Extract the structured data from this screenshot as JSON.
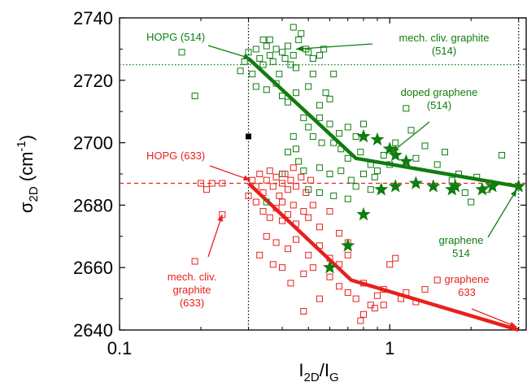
{
  "chart_data": {
    "type": "scatter",
    "xscale": "log",
    "xlim": [
      0.1,
      3.2
    ],
    "ylim": [
      2640,
      2740
    ],
    "xticks": [
      {
        "value": 0.1,
        "label": "0.1"
      },
      {
        "value": 1,
        "label": "1"
      }
    ],
    "yticks": [
      2640,
      2660,
      2680,
      2700,
      2720,
      2740
    ],
    "xlabel": {
      "main": "I",
      "sub1": "2D",
      "mid": "/I",
      "sub2": "G"
    },
    "ylabel": {
      "main": "σ",
      "sub": "2D",
      "mid": " (cm",
      "sup": "-1",
      "end": ")"
    },
    "colors": {
      "green": "#0f7d0f",
      "red": "#e8201c",
      "black": "#000000"
    },
    "reference_lines": [
      {
        "orientation": "vertical",
        "value": 0.3,
        "color": "#000000",
        "style": "dotted"
      },
      {
        "orientation": "vertical",
        "value": 3.0,
        "color": "#000000",
        "style": "dotted"
      },
      {
        "orientation": "horizontal",
        "value": 2725,
        "color": "#0f7d0f",
        "style": "dotted"
      },
      {
        "orientation": "horizontal",
        "value": 2687,
        "color": "#e8201c",
        "style": "dashed"
      }
    ],
    "trend_lines": [
      {
        "color": "#0f7d0f",
        "points": [
          [
            0.3,
            2727
          ],
          [
            0.75,
            2695
          ],
          [
            3.0,
            2686
          ]
        ]
      },
      {
        "color": "#e8201c",
        "points": [
          [
            0.3,
            2687
          ],
          [
            0.72,
            2656
          ],
          [
            3.0,
            2640
          ]
        ]
      }
    ],
    "series": [
      {
        "marker": "open-square",
        "color": "#0f7d0f",
        "points": [
          [
            0.17,
            2729
          ],
          [
            0.19,
            2715
          ],
          [
            0.28,
            2723
          ],
          [
            0.29,
            2726
          ],
          [
            0.3,
            2729
          ],
          [
            0.31,
            2722
          ],
          [
            0.32,
            2730
          ],
          [
            0.33,
            2727
          ],
          [
            0.34,
            2725
          ],
          [
            0.35,
            2731
          ],
          [
            0.36,
            2728
          ],
          [
            0.37,
            2726
          ],
          [
            0.38,
            2730
          ],
          [
            0.39,
            2722
          ],
          [
            0.4,
            2729
          ],
          [
            0.41,
            2727
          ],
          [
            0.42,
            2731
          ],
          [
            0.43,
            2725
          ],
          [
            0.44,
            2728
          ],
          [
            0.45,
            2724
          ],
          [
            0.46,
            2733
          ],
          [
            0.47,
            2735
          ],
          [
            0.49,
            2730
          ],
          [
            0.5,
            2729
          ],
          [
            0.52,
            2727
          ],
          [
            0.55,
            2728
          ],
          [
            0.57,
            2730
          ],
          [
            0.32,
            2718
          ],
          [
            0.35,
            2717
          ],
          [
            0.38,
            2719
          ],
          [
            0.4,
            2715
          ],
          [
            0.42,
            2713
          ],
          [
            0.45,
            2716
          ],
          [
            0.5,
            2718
          ],
          [
            0.55,
            2712
          ],
          [
            0.6,
            2714
          ],
          [
            0.44,
            2737
          ],
          [
            0.34,
            2733
          ],
          [
            0.36,
            2733
          ],
          [
            0.52,
            2722
          ],
          [
            0.58,
            2716
          ],
          [
            0.62,
            2722
          ],
          [
            0.48,
            2708
          ],
          [
            0.5,
            2705
          ],
          [
            0.55,
            2708
          ],
          [
            0.6,
            2706
          ],
          [
            0.65,
            2703
          ],
          [
            0.7,
            2705
          ],
          [
            0.75,
            2702
          ],
          [
            0.8,
            2706
          ],
          [
            0.52,
            2702
          ],
          [
            0.56,
            2700
          ],
          [
            0.62,
            2700
          ],
          [
            0.66,
            2698
          ],
          [
            0.7,
            2695
          ],
          [
            0.78,
            2697
          ],
          [
            0.85,
            2693
          ],
          [
            0.9,
            2691
          ],
          [
            0.95,
            2696
          ],
          [
            0.45,
            2698
          ],
          [
            0.48,
            2691
          ],
          [
            0.55,
            2692
          ],
          [
            0.6,
            2690
          ],
          [
            0.66,
            2691
          ],
          [
            0.72,
            2688
          ],
          [
            0.8,
            2690
          ],
          [
            0.88,
            2689
          ],
          [
            1.0,
            2693
          ],
          [
            1.05,
            2700
          ],
          [
            1.15,
            2711
          ],
          [
            1.2,
            2704
          ],
          [
            1.35,
            2699
          ],
          [
            1.5,
            2693
          ],
          [
            1.6,
            2697
          ],
          [
            1.7,
            2688
          ],
          [
            1.8,
            2690
          ],
          [
            1.9,
            2684
          ],
          [
            2.0,
            2681
          ],
          [
            2.1,
            2689
          ],
          [
            2.3,
            2685
          ],
          [
            2.6,
            2696
          ],
          [
            1.25,
            2695
          ],
          [
            0.5,
            2685
          ],
          [
            0.55,
            2684
          ],
          [
            0.62,
            2683
          ],
          [
            0.7,
            2682
          ],
          [
            0.75,
            2686
          ],
          [
            0.85,
            2685
          ],
          [
            0.42,
            2697
          ],
          [
            0.44,
            2702
          ],
          [
            0.46,
            2694
          ],
          [
            0.4,
            2690
          ],
          [
            0.35,
            2681
          ]
        ]
      },
      {
        "marker": "open-square",
        "color": "#e8201c",
        "points": [
          [
            0.2,
            2687
          ],
          [
            0.21,
            2685
          ],
          [
            0.22,
            2687
          ],
          [
            0.24,
            2687
          ],
          [
            0.24,
            2677
          ],
          [
            0.19,
            2662
          ],
          [
            0.3,
            2683
          ],
          [
            0.31,
            2688
          ],
          [
            0.32,
            2686
          ],
          [
            0.33,
            2690
          ],
          [
            0.34,
            2684
          ],
          [
            0.35,
            2688
          ],
          [
            0.36,
            2691
          ],
          [
            0.37,
            2686
          ],
          [
            0.38,
            2689
          ],
          [
            0.39,
            2683
          ],
          [
            0.4,
            2687
          ],
          [
            0.41,
            2690
          ],
          [
            0.42,
            2685
          ],
          [
            0.43,
            2688
          ],
          [
            0.44,
            2692
          ],
          [
            0.45,
            2686
          ],
          [
            0.47,
            2689
          ],
          [
            0.49,
            2684
          ],
          [
            0.51,
            2688
          ],
          [
            0.34,
            2678
          ],
          [
            0.36,
            2676
          ],
          [
            0.38,
            2679
          ],
          [
            0.4,
            2675
          ],
          [
            0.42,
            2677
          ],
          [
            0.45,
            2674
          ],
          [
            0.48,
            2678
          ],
          [
            0.5,
            2676
          ],
          [
            0.55,
            2673
          ],
          [
            0.6,
            2678
          ],
          [
            0.35,
            2670
          ],
          [
            0.38,
            2668
          ],
          [
            0.42,
            2666
          ],
          [
            0.45,
            2669
          ],
          [
            0.5,
            2664
          ],
          [
            0.55,
            2667
          ],
          [
            0.6,
            2663
          ],
          [
            0.65,
            2661
          ],
          [
            0.7,
            2664
          ],
          [
            0.32,
            2681
          ],
          [
            0.4,
            2681
          ],
          [
            0.44,
            2680
          ],
          [
            0.52,
            2680
          ],
          [
            0.4,
            2660
          ],
          [
            0.43,
            2655
          ],
          [
            0.48,
            2658
          ],
          [
            0.52,
            2660
          ],
          [
            0.6,
            2657
          ],
          [
            0.65,
            2654
          ],
          [
            0.7,
            2652
          ],
          [
            0.75,
            2650
          ],
          [
            0.8,
            2655
          ],
          [
            0.85,
            2648
          ],
          [
            0.9,
            2651
          ],
          [
            0.95,
            2653
          ],
          [
            0.78,
            2643
          ],
          [
            0.8,
            2645
          ],
          [
            0.88,
            2647
          ],
          [
            0.95,
            2648
          ],
          [
            1.0,
            2661
          ],
          [
            1.05,
            2663
          ],
          [
            1.1,
            2650
          ],
          [
            1.15,
            2652
          ],
          [
            1.25,
            2649
          ],
          [
            1.35,
            2653
          ],
          [
            1.5,
            2656
          ],
          [
            0.48,
            2646
          ],
          [
            0.55,
            2650
          ],
          [
            0.65,
            2671
          ],
          [
            0.7,
            2668
          ],
          [
            0.37,
            2661
          ],
          [
            0.33,
            2664
          ]
        ]
      },
      {
        "marker": "star",
        "color": "#0f7d0f",
        "points": [
          [
            0.8,
            2702
          ],
          [
            0.9,
            2701
          ],
          [
            1.0,
            2698
          ],
          [
            1.05,
            2696
          ],
          [
            1.15,
            2694
          ],
          [
            0.93,
            2685
          ],
          [
            1.05,
            2686
          ],
          [
            1.25,
            2687
          ],
          [
            1.45,
            2686
          ],
          [
            1.7,
            2685
          ],
          [
            1.75,
            2686
          ],
          [
            2.2,
            2685
          ],
          [
            2.4,
            2686
          ],
          [
            3.0,
            2686
          ],
          [
            0.8,
            2677
          ],
          [
            0.7,
            2667
          ],
          [
            0.6,
            2660
          ]
        ]
      },
      {
        "marker": "filled-square",
        "color": "#000000",
        "points": [
          [
            0.3,
            2702
          ]
        ]
      }
    ],
    "annotations": [
      {
        "lines": [
          "HOPG (514)"
        ],
        "color": "#0f7d0f",
        "arrow_to": [
          0.305,
          2727
        ]
      },
      {
        "lines": [
          "mech. cliv. graphite",
          "(514)"
        ],
        "color": "#0f7d0f",
        "arrow_to": [
          0.45,
          2730
        ]
      },
      {
        "lines": [
          "doped graphene",
          "(514)"
        ],
        "color": "#0f7d0f",
        "arrow_to": [
          1.02,
          2697
        ]
      },
      {
        "lines": [
          "HOPG (633)"
        ],
        "color": "#e8201c",
        "arrow_to": [
          0.305,
          2688
        ]
      },
      {
        "lines": [
          "mech. cliv.",
          "graphite",
          "(633)"
        ],
        "color": "#e8201c",
        "arrow_to": [
          0.24,
          2677
        ]
      },
      {
        "lines": [
          "graphene",
          "514"
        ],
        "color": "#0f7d0f",
        "arrow_to": [
          2.95,
          2685
        ]
      },
      {
        "lines": [
          "graphene",
          "633"
        ],
        "color": "#e8201c",
        "arrow_to": [
          2.95,
          2641
        ]
      }
    ]
  }
}
